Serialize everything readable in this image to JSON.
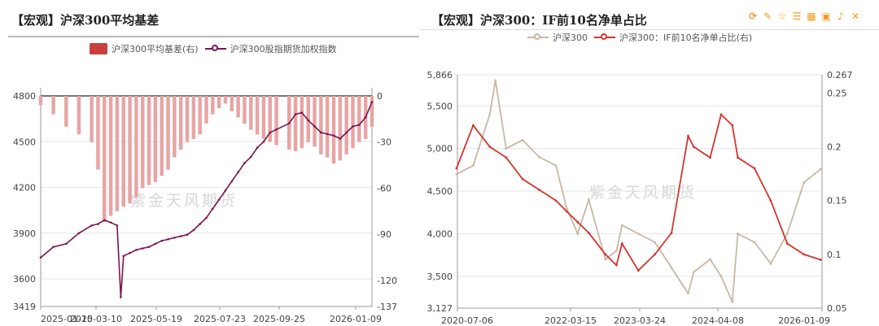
{
  "left": {
    "title": "【宏观】沪深300平均基差",
    "watermark": "紫金天风期货",
    "chart_data": {
      "type": "bar+line",
      "title": "【宏观】沪深300平均基差",
      "x_tick_labels": [
        "2025-01-10",
        "2025-03-10",
        "2025-05-19",
        "2025-07-23",
        "2025-09-25",
        "2026-01-09"
      ],
      "y_left": {
        "ticks": [
          3419,
          3600,
          3900,
          4200,
          4500,
          4800
        ],
        "range": [
          3419,
          4800
        ]
      },
      "y_right": {
        "ticks": [
          -137,
          -120,
          -90,
          -60,
          -30,
          0
        ],
        "range": [
          -137,
          0
        ]
      },
      "series": [
        {
          "name": "沪深300平均基差(右)",
          "kind": "bar",
          "axis": "right",
          "color": "#e8a4a4",
          "x": [
            "2025-01-10",
            "2025-01-24",
            "2025-02-07",
            "2025-02-21",
            "2025-03-07",
            "2025-03-14",
            "2025-03-21",
            "2025-03-28",
            "2025-04-04",
            "2025-04-11",
            "2025-04-18",
            "2025-04-25",
            "2025-05-02",
            "2025-05-09",
            "2025-05-16",
            "2025-05-23",
            "2025-05-30",
            "2025-06-06",
            "2025-06-13",
            "2025-06-20",
            "2025-06-27",
            "2025-07-04",
            "2025-07-11",
            "2025-07-18",
            "2025-07-25",
            "2025-08-01",
            "2025-08-08",
            "2025-08-15",
            "2025-08-22",
            "2025-08-29",
            "2025-09-05",
            "2025-09-12",
            "2025-09-19",
            "2025-09-26",
            "2025-10-10",
            "2025-10-17",
            "2025-10-24",
            "2025-10-31",
            "2025-11-07",
            "2025-11-14",
            "2025-11-21",
            "2025-11-28",
            "2025-12-05",
            "2025-12-12",
            "2025-12-19",
            "2025-12-26",
            "2026-01-02",
            "2026-01-09"
          ],
          "values": [
            -6,
            -12,
            -20,
            -25,
            -30,
            -48,
            -82,
            -78,
            -75,
            -72,
            -70,
            -66,
            -60,
            -58,
            -56,
            -52,
            -48,
            -40,
            -35,
            -30,
            -28,
            -25,
            -18,
            -12,
            -8,
            -5,
            -10,
            -14,
            -18,
            -22,
            -25,
            -28,
            -30,
            -32,
            -35,
            -36,
            -34,
            -30,
            -33,
            -38,
            -40,
            -44,
            -42,
            -38,
            -34,
            -30,
            -28,
            -20
          ]
        },
        {
          "name": "沪深300股指期货加权指数",
          "kind": "line",
          "axis": "left",
          "color": "#7b1450",
          "x": [
            "2025-01-10",
            "2025-01-24",
            "2025-02-07",
            "2025-02-21",
            "2025-03-07",
            "2025-03-14",
            "2025-03-21",
            "2025-03-28",
            "2025-04-04",
            "2025-04-08",
            "2025-04-11",
            "2025-04-18",
            "2025-04-25",
            "2025-05-02",
            "2025-05-09",
            "2025-05-16",
            "2025-05-23",
            "2025-05-30",
            "2025-06-06",
            "2025-06-13",
            "2025-06-20",
            "2025-06-27",
            "2025-07-04",
            "2025-07-11",
            "2025-07-18",
            "2025-07-25",
            "2025-08-01",
            "2025-08-08",
            "2025-08-15",
            "2025-08-22",
            "2025-08-29",
            "2025-09-05",
            "2025-09-12",
            "2025-09-19",
            "2025-09-26",
            "2025-10-10",
            "2025-10-17",
            "2025-10-24",
            "2025-10-31",
            "2025-11-07",
            "2025-11-14",
            "2025-11-21",
            "2025-11-28",
            "2025-12-05",
            "2025-12-12",
            "2025-12-19",
            "2025-12-26",
            "2026-01-02",
            "2026-01-09"
          ],
          "values": [
            3740,
            3810,
            3830,
            3900,
            3950,
            3960,
            3985,
            3970,
            3950,
            3480,
            3750,
            3770,
            3790,
            3800,
            3810,
            3830,
            3850,
            3860,
            3870,
            3880,
            3890,
            3920,
            3960,
            4000,
            4060,
            4120,
            4180,
            4240,
            4300,
            4360,
            4400,
            4460,
            4500,
            4560,
            4580,
            4620,
            4680,
            4690,
            4640,
            4600,
            4560,
            4550,
            4540,
            4520,
            4560,
            4600,
            4610,
            4660,
            4760
          ]
        }
      ]
    }
  },
  "right": {
    "title": "【宏观】沪深300：IF前10名净单占比",
    "watermark": "紫金天风期货",
    "toolbar": [
      {
        "name": "refresh-icon",
        "glyph": "⟳"
      },
      {
        "name": "edit-icon",
        "glyph": "✎"
      },
      {
        "name": "star-icon",
        "glyph": "☆"
      },
      {
        "name": "list-icon",
        "glyph": "☰"
      },
      {
        "name": "table-icon",
        "glyph": "▦"
      },
      {
        "name": "image-icon",
        "glyph": "▣"
      },
      {
        "name": "bell-icon",
        "glyph": "♪"
      },
      {
        "name": "expand-icon",
        "glyph": "✕"
      }
    ],
    "chart_data": {
      "type": "line",
      "title": "【宏观】沪深300：IF前10名净单占比",
      "x_tick_labels": [
        "2020-07-06",
        "2022-03-15",
        "2023-03-24",
        "2024-04-08",
        "2026-01-09"
      ],
      "y_left": {
        "ticks": [
          "3,127",
          "3,500",
          "4,000",
          "4,500",
          "5,000",
          "5,500",
          "5,866"
        ],
        "range": [
          3127,
          5866
        ]
      },
      "y_right": {
        "ticks": [
          "0.05",
          "0.1",
          "0.15",
          "0.2",
          "0.25",
          "0.267"
        ],
        "range": [
          0.05,
          0.267
        ]
      },
      "series": [
        {
          "name": "沪深300",
          "axis": "left",
          "color": "#c8b8a5",
          "x": [
            "2020-07",
            "2020-10",
            "2021-01",
            "2021-02",
            "2021-04",
            "2021-07",
            "2021-10",
            "2022-01",
            "2022-03",
            "2022-05",
            "2022-07",
            "2022-10",
            "2022-12",
            "2023-01",
            "2023-04",
            "2023-07",
            "2023-10",
            "2024-01",
            "2024-02",
            "2024-05",
            "2024-07",
            "2024-09",
            "2024-10",
            "2025-01",
            "2025-04",
            "2025-07",
            "2025-10",
            "2026-01"
          ],
          "values": [
            4700,
            4800,
            5400,
            5800,
            5000,
            5100,
            4900,
            4800,
            4300,
            4000,
            4400,
            3700,
            3800,
            4100,
            4000,
            3900,
            3600,
            3300,
            3550,
            3700,
            3500,
            3200,
            4000,
            3900,
            3650,
            4000,
            4600,
            4760
          ]
        },
        {
          "name": "沪深300：IF前10名净单占比(右)",
          "axis": "right",
          "color": "#d23530",
          "x": [
            "2020-07",
            "2020-10",
            "2021-01",
            "2021-04",
            "2021-07",
            "2021-10",
            "2022-01",
            "2022-03",
            "2022-05",
            "2022-07",
            "2022-10",
            "2022-12",
            "2023-01",
            "2023-04",
            "2023-07",
            "2023-10",
            "2024-01",
            "2024-02",
            "2024-05",
            "2024-07",
            "2024-09",
            "2024-10",
            "2025-01",
            "2025-04",
            "2025-07",
            "2025-10",
            "2026-01"
          ],
          "values": [
            0.18,
            0.22,
            0.2,
            0.19,
            0.17,
            0.16,
            0.15,
            0.14,
            0.13,
            0.12,
            0.1,
            0.09,
            0.11,
            0.085,
            0.1,
            0.12,
            0.21,
            0.2,
            0.19,
            0.23,
            0.22,
            0.19,
            0.18,
            0.15,
            0.11,
            0.1,
            0.095
          ]
        }
      ]
    }
  }
}
